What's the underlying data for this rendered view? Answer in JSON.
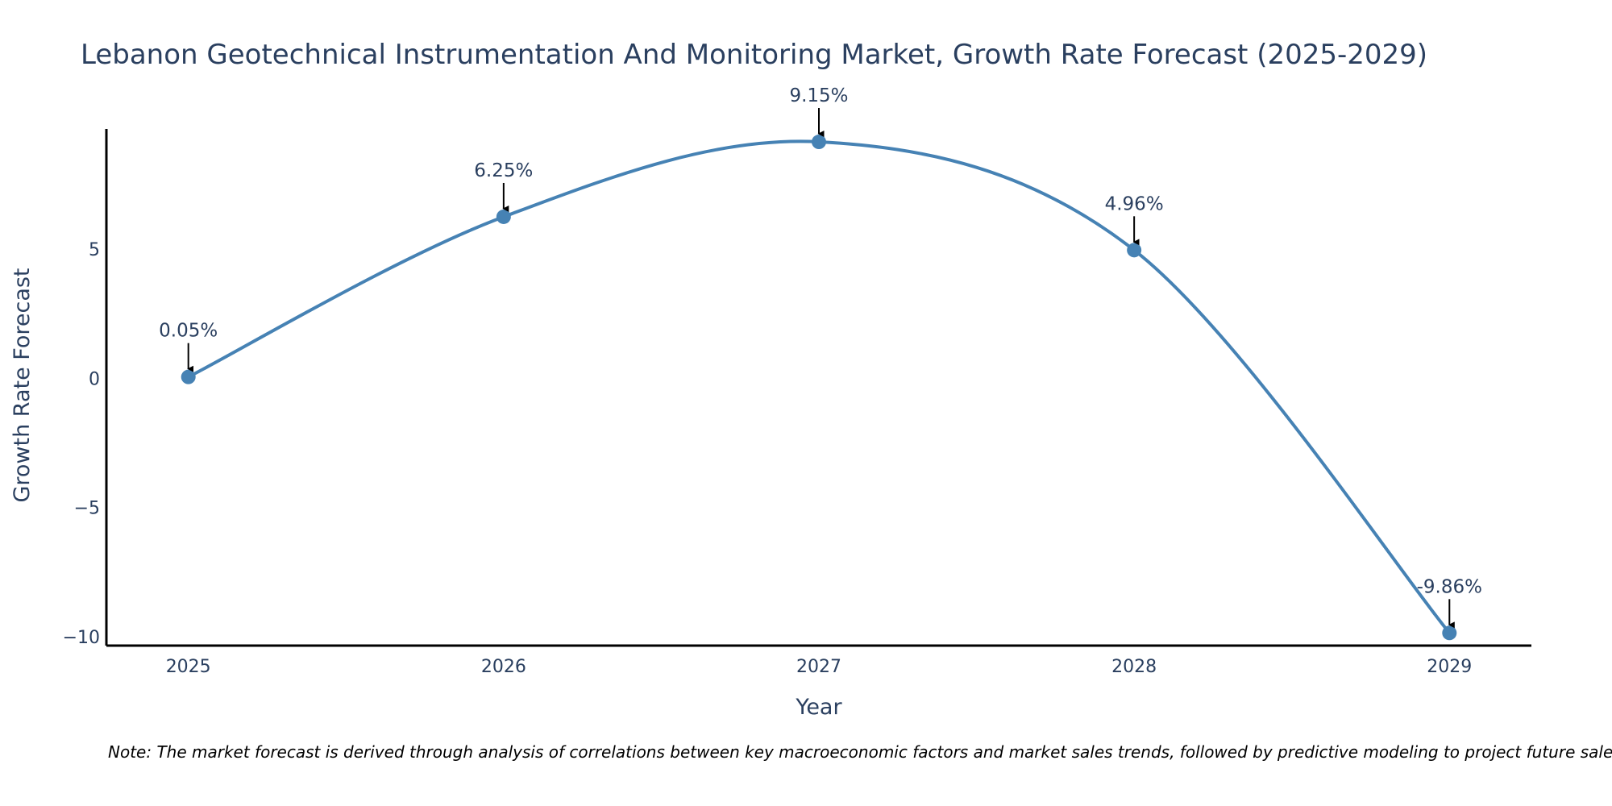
{
  "chart_data": {
    "type": "line",
    "title": "Lebanon Geotechnical Instrumentation And Monitoring Market, Growth Rate Forecast (2025-2029)",
    "xlabel": "Year",
    "ylabel": "Growth Rate Forecast",
    "categories": [
      "2025",
      "2026",
      "2027",
      "2028",
      "2029"
    ],
    "series": [
      {
        "name": "Growth Rate Forecast",
        "values": [
          0.05,
          6.25,
          9.15,
          4.96,
          -9.86
        ],
        "color": "#4682b4"
      }
    ],
    "data_labels": [
      "0.05%",
      "6.25%",
      "9.15%",
      "4.96%",
      "-9.86%"
    ],
    "y_ticks": [
      {
        "value": -10,
        "label": "−10"
      },
      {
        "value": -5,
        "label": "−5"
      },
      {
        "value": 0,
        "label": "0"
      },
      {
        "value": 5,
        "label": "5"
      }
    ],
    "ylim": [
      -10.35,
      9.65
    ],
    "xlim": [
      2024.74,
      2029.26
    ],
    "grid": false,
    "axis_color": "#000000",
    "text_color": "#2a3f5f"
  },
  "footnote": "Note: The market forecast is derived through analysis of correlations between key macroeconomic factors and market sales trends, followed by predictive modeling to project future sales."
}
